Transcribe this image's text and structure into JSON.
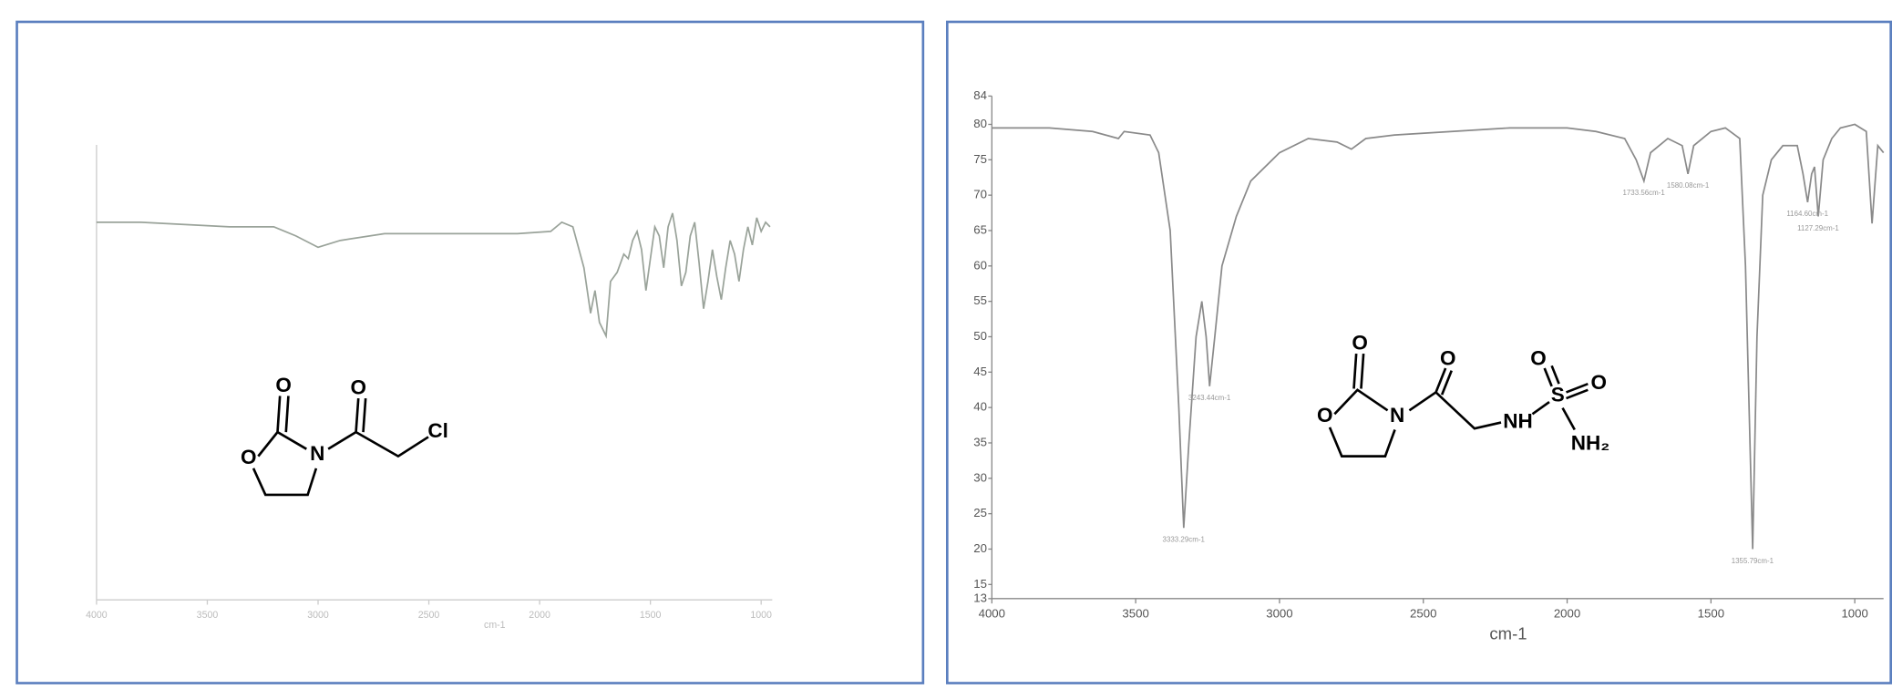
{
  "chart_data": [
    {
      "type": "line",
      "x_label": "cm-1",
      "xlim": [
        4000,
        950
      ],
      "ylim": [
        0,
        100
      ],
      "xticks": [
        4000,
        3500,
        3000,
        2500,
        2000,
        1500,
        1000
      ],
      "structure_labels": [
        "O",
        "O",
        "N",
        "O",
        "Cl"
      ],
      "series": [
        {
          "color": "#9aa39a",
          "x": [
            4000,
            3800,
            3600,
            3400,
            3200,
            3100,
            3000,
            2900,
            2700,
            2500,
            2300,
            2100,
            1950,
            1900,
            1850,
            1800,
            1770,
            1750,
            1730,
            1700,
            1680,
            1650,
            1620,
            1600,
            1580,
            1560,
            1540,
            1520,
            1500,
            1480,
            1460,
            1440,
            1420,
            1400,
            1380,
            1360,
            1340,
            1320,
            1300,
            1280,
            1260,
            1240,
            1220,
            1200,
            1180,
            1160,
            1140,
            1120,
            1100,
            1080,
            1060,
            1040,
            1020,
            1000,
            980,
            960
          ],
          "values": [
            83,
            83,
            82.5,
            82,
            82,
            80,
            77.5,
            79,
            80.5,
            80.5,
            80.5,
            80.5,
            81,
            83,
            82,
            73,
            63,
            68,
            61,
            58,
            70,
            72,
            76,
            75,
            79,
            81,
            77,
            68,
            75,
            82,
            80,
            73,
            82,
            85,
            79,
            69,
            72,
            80,
            83,
            74,
            64,
            70,
            77,
            71,
            66,
            73,
            79,
            76,
            70,
            77,
            82,
            78,
            84,
            81,
            83,
            82
          ]
        }
      ]
    },
    {
      "type": "line",
      "x_label": "cm-1",
      "xlim": [
        4000,
        900
      ],
      "ylim": [
        13,
        84
      ],
      "xticks": [
        4000,
        3500,
        3000,
        2500,
        2000,
        1500,
        1000
      ],
      "yticks": [
        13,
        15,
        20,
        25,
        30,
        35,
        40,
        45,
        50,
        55,
        60,
        65,
        70,
        75,
        80,
        84
      ],
      "structure_labels": [
        "O",
        "O",
        "N",
        "O",
        "NH",
        "O",
        "S",
        "O",
        "NH₂"
      ],
      "annotations": [
        {
          "x": 3333.29,
          "y": 23,
          "label": "3333.29cm-1"
        },
        {
          "x": 3243.44,
          "y": 43,
          "label": "3243.44cm-1"
        },
        {
          "x": 1733.56,
          "y": 72,
          "label": "1733.56cm-1"
        },
        {
          "x": 1580.08,
          "y": 73,
          "label": "1580.08cm-1"
        },
        {
          "x": 1355.79,
          "y": 20,
          "label": "1355.79cm-1"
        },
        {
          "x": 1164.6,
          "y": 69,
          "label": "1164.60cm-1"
        },
        {
          "x": 1127.29,
          "y": 67,
          "label": "1127.29cm-1"
        }
      ],
      "series": [
        {
          "color": "#8a8a8a",
          "x": [
            4000,
            3800,
            3650,
            3560,
            3540,
            3450,
            3420,
            3380,
            3350,
            3333,
            3315,
            3290,
            3270,
            3255,
            3243,
            3225,
            3200,
            3150,
            3100,
            3000,
            2900,
            2800,
            2750,
            2700,
            2600,
            2400,
            2200,
            2000,
            1900,
            1800,
            1760,
            1733,
            1710,
            1650,
            1600,
            1580,
            1560,
            1500,
            1450,
            1400,
            1380,
            1355,
            1340,
            1320,
            1290,
            1250,
            1200,
            1180,
            1164,
            1150,
            1140,
            1127,
            1110,
            1080,
            1050,
            1000,
            960,
            940,
            920,
            900
          ],
          "values": [
            79.5,
            79.5,
            79,
            78,
            79,
            78.5,
            76,
            65,
            40,
            23,
            35,
            50,
            55,
            50,
            43,
            50,
            60,
            67,
            72,
            76,
            78,
            77.5,
            76.5,
            78,
            78.5,
            79,
            79.5,
            79.5,
            79,
            78,
            75,
            72,
            76,
            78,
            77,
            73,
            77,
            79,
            79.5,
            78,
            60,
            20,
            50,
            70,
            75,
            77,
            77,
            73,
            69,
            73,
            74,
            67,
            75,
            78,
            79.5,
            80,
            79,
            66,
            77,
            76
          ]
        }
      ]
    }
  ]
}
